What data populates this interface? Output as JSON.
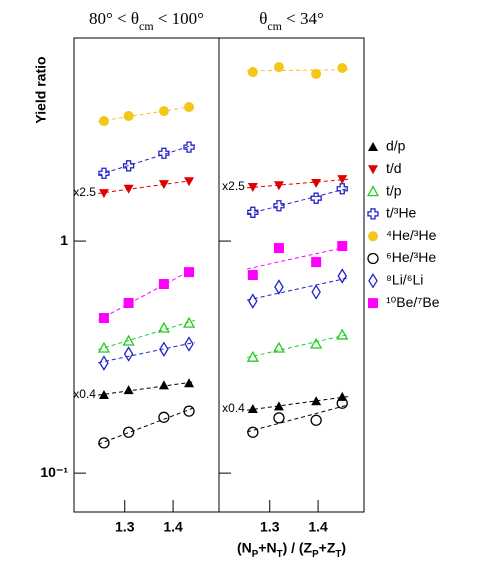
{
  "chart_data": [
    {
      "type": "scatter",
      "title": "80° < θcm < 100°",
      "ylabel": "Yield ratio",
      "log_y": true,
      "fit_lines": true,
      "x": [
        1.257,
        1.308,
        1.381,
        1.433
      ],
      "xlim": [
        1.195,
        1.495
      ],
      "xticks": [
        1.3,
        1.4
      ],
      "ylim": [
        0.068,
        7.5
      ],
      "yticks": [
        {
          "value": 0.1,
          "label": "10⁻¹"
        },
        1
      ],
      "series": [
        {
          "name": "d/p",
          "color": "#000000",
          "marker": "triangle-up",
          "values": [
            0.217,
            0.228,
            0.239,
            0.244
          ]
        },
        {
          "name": "t/d",
          "color": "#e00000",
          "marker": "triangle-down",
          "values": [
            1.61,
            1.68,
            1.76,
            1.81
          ]
        },
        {
          "name": "t/p",
          "color": "#22cc22",
          "marker": "triangle-open",
          "values": [
            0.346,
            0.371,
            0.422,
            0.443
          ]
        },
        {
          "name": "t/³He",
          "color": "#2222cc",
          "marker": "cross-open",
          "values": [
            1.96,
            2.11,
            2.39,
            2.54
          ]
        },
        {
          "name": "⁴He/³He",
          "color": "#f5c518",
          "marker": "circle",
          "values": [
            3.29,
            3.46,
            3.63,
            3.78
          ]
        },
        {
          "name": "⁶He/³He",
          "color": "#000000",
          "marker": "circle-open",
          "values": [
            0.135,
            0.15,
            0.174,
            0.185
          ]
        },
        {
          "name": "⁸Li/⁶Li",
          "color": "#2222cc",
          "marker": "diamond-open",
          "values": [
            0.298,
            0.326,
            0.342,
            0.36
          ]
        },
        {
          "name": "¹⁰Be/⁷Be",
          "color": "#ff00ff",
          "marker": "square",
          "values": [
            0.466,
            0.541,
            0.653,
            0.735
          ]
        }
      ],
      "annotations": [
        {
          "text": "x2.5",
          "series": 1
        },
        {
          "text": "x0.4",
          "series": 0
        }
      ]
    },
    {
      "type": "scatter",
      "title": "θcm < 34°",
      "xlabel": "(NP+NT) / (ZP+ZT)",
      "log_y": true,
      "fit_lines": true,
      "x": [
        1.265,
        1.319,
        1.396,
        1.45
      ],
      "xlim": [
        1.195,
        1.495
      ],
      "xticks": [
        1.3,
        1.4
      ],
      "ylim": [
        0.068,
        7.5
      ],
      "series": [
        {
          "color": "#000000",
          "marker": "triangle-up",
          "values": [
            0.189,
            0.194,
            0.204,
            0.213
          ]
        },
        {
          "color": "#e00000",
          "marker": "triangle-down",
          "values": [
            1.71,
            1.74,
            1.78,
            1.85
          ]
        },
        {
          "color": "#22cc22",
          "marker": "triangle-open",
          "values": [
            0.316,
            0.346,
            0.36,
            0.394
          ]
        },
        {
          "color": "#2222cc",
          "marker": "cross-open",
          "values": [
            1.33,
            1.42,
            1.53,
            1.68
          ]
        },
        {
          "color": "#f5c518",
          "marker": "circle",
          "values": [
            5.35,
            5.62,
            5.25,
            5.57
          ]
        },
        {
          "color": "#000000",
          "marker": "circle-open",
          "values": [
            0.15,
            0.173,
            0.169,
            0.2
          ]
        },
        {
          "color": "#2222cc",
          "marker": "diamond-open",
          "values": [
            0.551,
            0.634,
            0.603,
            0.707
          ]
        },
        {
          "color": "#ff00ff",
          "marker": "square",
          "values": [
            0.714,
            0.933,
            0.812,
            0.952
          ]
        }
      ],
      "annotations": [
        {
          "text": "x2.5",
          "series": 1
        },
        {
          "text": "x0.4",
          "series": 0
        }
      ]
    }
  ]
}
